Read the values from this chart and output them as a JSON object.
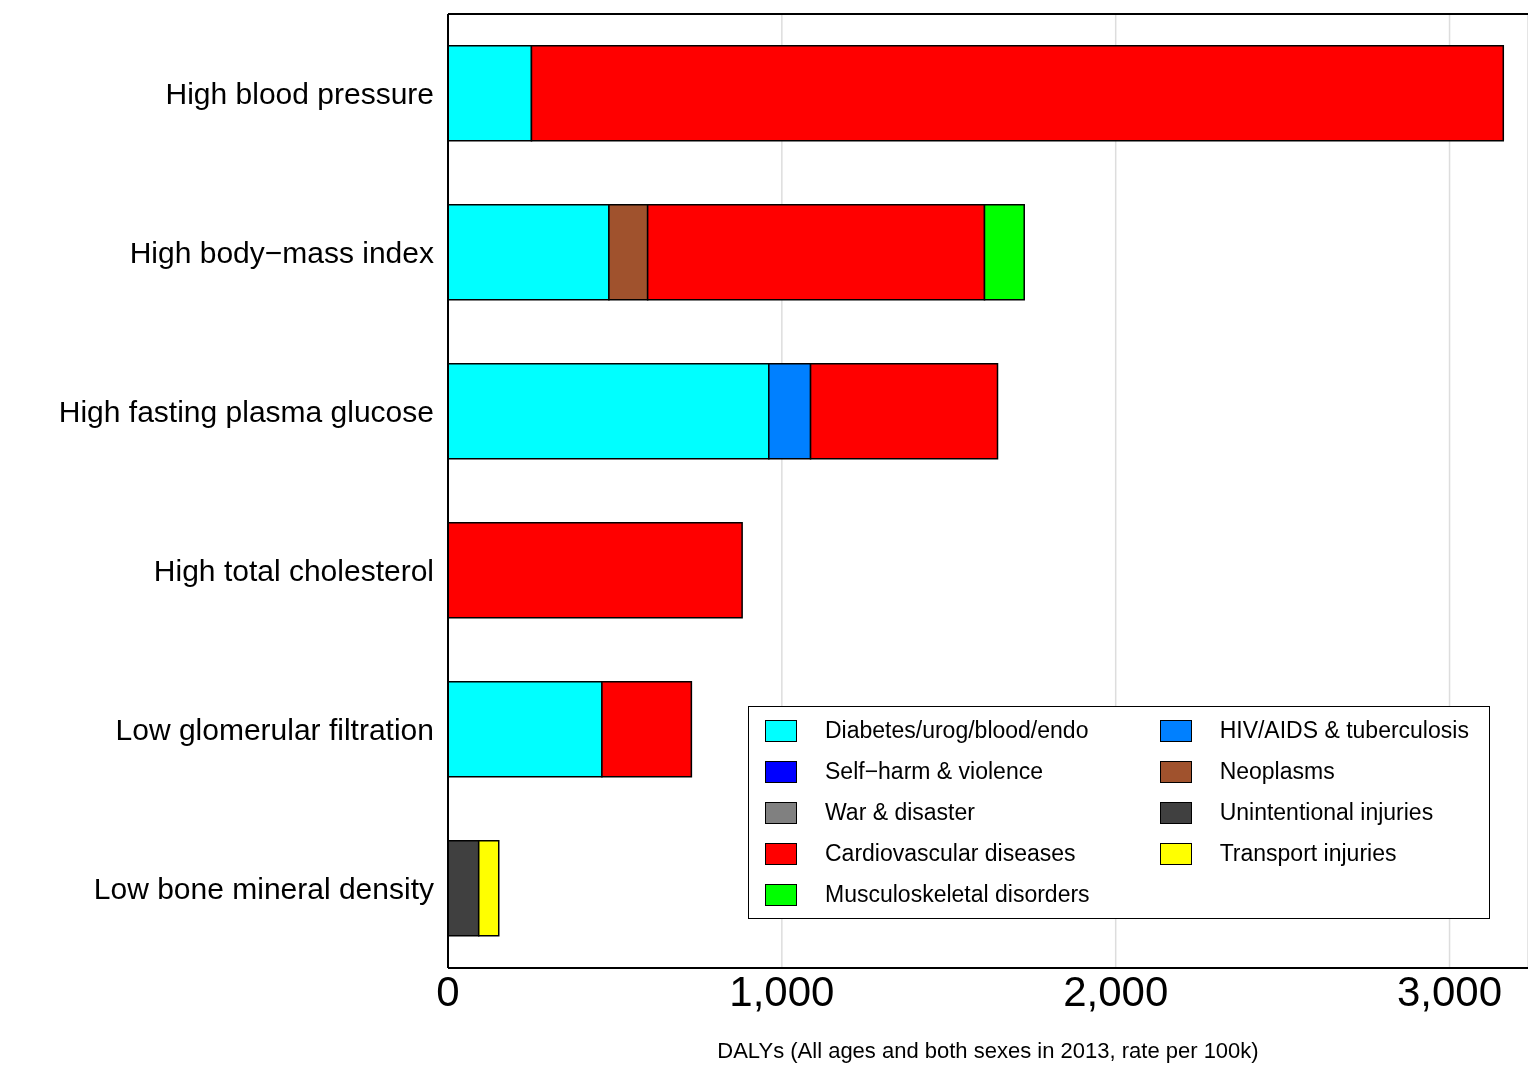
{
  "chart_data": {
    "type": "bar",
    "orientation": "horizontal",
    "stacked": true,
    "xlabel": "DALYs (All ages and both sexes in 2013, rate per 100k)",
    "categories": [
      "High blood pressure",
      "High body−mass index",
      "High fasting plasma glucose",
      "High total cholesterol",
      "Low glomerular filtration",
      "Low bone mineral density"
    ],
    "series": [
      {
        "name": "Diabetes/urog/blood/endo",
        "color": "#00ffff",
        "values": [
          250,
          482,
          961,
          null,
          461,
          null
        ]
      },
      {
        "name": "HIV/AIDS & tuberculosis",
        "color": "#0080ff",
        "values": [
          null,
          null,
          125,
          null,
          null,
          null
        ]
      },
      {
        "name": "Self−harm & violence",
        "color": "#0000ff",
        "values": [
          null,
          null,
          null,
          null,
          null,
          null
        ]
      },
      {
        "name": "Neoplasms",
        "color": "#a0522d",
        "values": [
          null,
          116,
          null,
          null,
          null,
          null
        ]
      },
      {
        "name": "War & disaster",
        "color": "#808080",
        "values": [
          null,
          null,
          null,
          null,
          null,
          null
        ]
      },
      {
        "name": "Unintentional injuries",
        "color": "#404040",
        "values": [
          null,
          null,
          null,
          null,
          null,
          92
        ]
      },
      {
        "name": "Cardiovascular diseases",
        "color": "#ff0000",
        "values": [
          2911,
          1009,
          560,
          881,
          268,
          null
        ]
      },
      {
        "name": "Transport injuries",
        "color": "#ffff00",
        "values": [
          null,
          null,
          null,
          null,
          null,
          60
        ]
      },
      {
        "name": "Musculoskeletal disorders",
        "color": "#00ff00",
        "values": [
          null,
          119,
          null,
          null,
          null,
          null
        ]
      }
    ],
    "xlim": [
      0,
      3235
    ],
    "xticks": [
      0,
      {
        "value": 1000,
        "label": "1,000"
      },
      {
        "value": 2000,
        "label": "2,000"
      },
      {
        "value": 3000,
        "label": "3,000"
      }
    ],
    "grid": "x",
    "legend": "bottom right"
  }
}
